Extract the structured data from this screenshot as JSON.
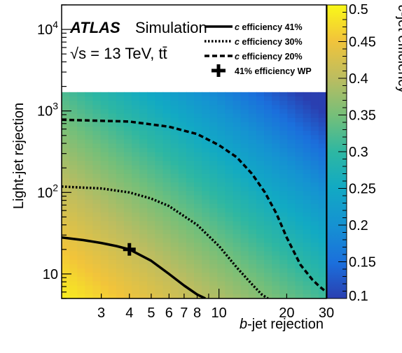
{
  "chart_data": {
    "type": "heatmap",
    "xlabel_b": "b",
    "xlabel_rest": "-jet rejection",
    "ylabel": "Light-jet rejection",
    "zlabel_c": "c",
    "zlabel_rest": "-jet efficiency",
    "x_scale": "log",
    "y_scale": "log",
    "xlim": [
      2,
      30
    ],
    "ylim": [
      5,
      20000
    ],
    "zlim": [
      0.1,
      0.5
    ],
    "x_ticks": [
      {
        "value": 3,
        "label": "3"
      },
      {
        "value": 4,
        "label": "4"
      },
      {
        "value": 5,
        "label": "5"
      },
      {
        "value": 6,
        "label": "6"
      },
      {
        "value": 7,
        "label": "7"
      },
      {
        "value": 8,
        "label": "8"
      },
      {
        "value": 10,
        "label": "10"
      },
      {
        "value": 20,
        "label": "20"
      },
      {
        "value": 30,
        "label": "30"
      }
    ],
    "y_ticks": [
      {
        "value": 10,
        "base": "10",
        "exp": ""
      },
      {
        "value": 100,
        "base": "10",
        "exp": "2"
      },
      {
        "value": 1000,
        "base": "10",
        "exp": "3"
      },
      {
        "value": 10000,
        "base": "10",
        "exp": "4"
      }
    ],
    "z_ticks": [
      {
        "value": 0.1,
        "label": "0.1"
      },
      {
        "value": 0.15,
        "label": "0.15"
      },
      {
        "value": 0.2,
        "label": "0.2"
      },
      {
        "value": 0.25,
        "label": "0.25"
      },
      {
        "value": 0.3,
        "label": "0.3"
      },
      {
        "value": 0.35,
        "label": "0.35"
      },
      {
        "value": 0.4,
        "label": "0.4"
      },
      {
        "value": 0.45,
        "label": "0.45"
      },
      {
        "value": 0.5,
        "label": "0.5"
      }
    ],
    "heatmap_ymax": 1700,
    "series": [
      {
        "name": "c efficiency 41%",
        "style": "solid",
        "x": [
          2.0,
          2.5,
          3.0,
          3.5,
          4.0,
          5.0,
          6.0,
          7.0,
          8.0,
          8.7
        ],
        "y": [
          28,
          26,
          24,
          22,
          20,
          14.5,
          10,
          7.2,
          5.6,
          5.0
        ]
      },
      {
        "name": "c efficiency 30%",
        "style": "dotted",
        "x": [
          2.0,
          3.0,
          4.0,
          5.0,
          6.0,
          8.0,
          10.0,
          12.0,
          14.0,
          15.5,
          16.5
        ],
        "y": [
          118,
          112,
          100,
          84,
          68,
          40,
          22,
          12,
          7.5,
          5.6,
          5.0
        ]
      },
      {
        "name": "c efficiency 20%",
        "style": "dashed",
        "x": [
          2.0,
          4.0,
          6.0,
          8.0,
          10.0,
          12.0,
          14.0,
          16.0,
          18.0,
          20.0,
          23.0,
          26.0,
          28.0,
          30.0
        ],
        "y": [
          780,
          740,
          640,
          520,
          380,
          270,
          170,
          100,
          55,
          28,
          13,
          8.5,
          7.0,
          6.0
        ]
      }
    ],
    "working_point": {
      "label": "41% efficiency WP",
      "x": 4.0,
      "y": 20
    },
    "annotations": {
      "experiment": "ATLAS",
      "simulation": "Simulation",
      "energy": "√s = 13 TeV, tt̄"
    },
    "legend_entries": [
      {
        "c": "c",
        "text": " efficiency 41%",
        "style": "solid"
      },
      {
        "c": "c",
        "text": " efficiency 30%",
        "style": "dotted"
      },
      {
        "c": "c",
        "text": " efficiency 20%",
        "style": "dashed"
      },
      {
        "c": "",
        "text": "41% efficiency WP",
        "style": "marker"
      }
    ],
    "legend_position": "top-right"
  }
}
